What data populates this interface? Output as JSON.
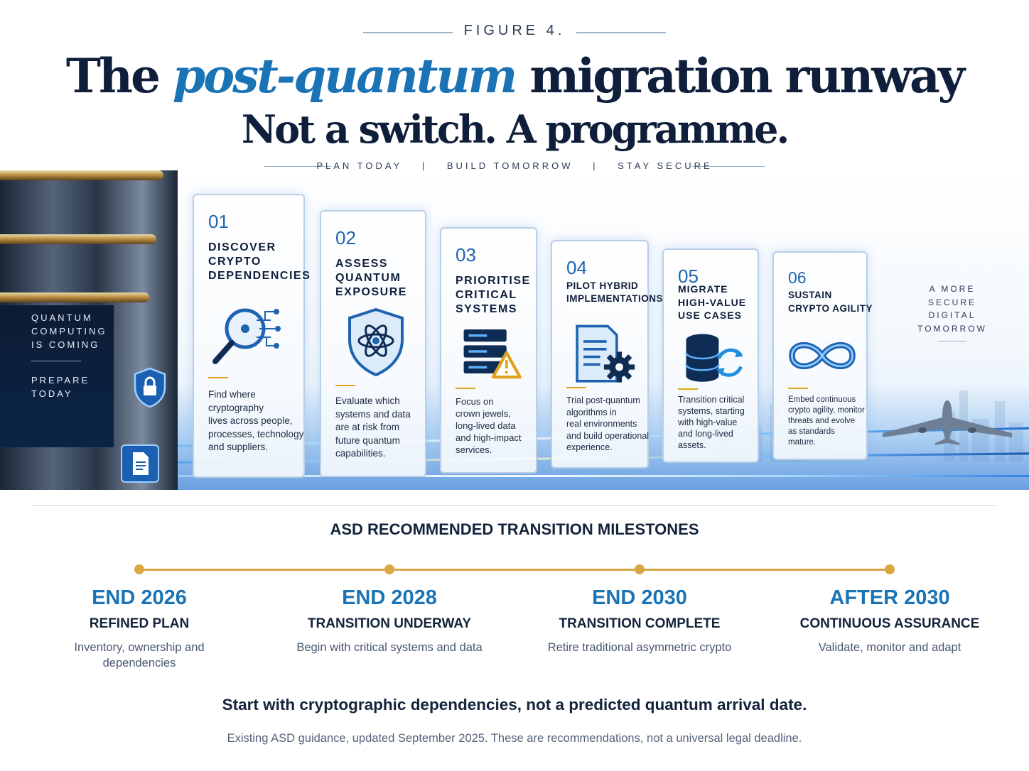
{
  "header": {
    "figure_label": "FIGURE 4.",
    "title_pre": "The",
    "title_accent": "post-quantum",
    "title_post": "migration runway",
    "subtitle": "Not a switch. A programme.",
    "tagline": [
      "PLAN TODAY",
      "|",
      "BUILD TOMORROW",
      "|",
      "STAY SECURE"
    ]
  },
  "tower": {
    "line1": [
      "QUANTUM",
      "COMPUTING",
      "IS COMING"
    ],
    "line2": [
      "PREPARE",
      "TODAY"
    ]
  },
  "steps": [
    {
      "num": "01",
      "title": [
        "Discover",
        "crypto",
        "dependencies"
      ],
      "icon": "magnifier-network-icon",
      "text": [
        "Find where",
        "cryptography",
        "lives across people,",
        "processes, technology",
        "and suppliers."
      ]
    },
    {
      "num": "02",
      "title": [
        "Assess",
        "quantum",
        "exposure"
      ],
      "icon": "atom-shield-icon",
      "text": [
        "Evaluate which",
        "systems and data",
        "are at risk from",
        "future quantum",
        "capabilities."
      ]
    },
    {
      "num": "03",
      "title": [
        "Prioritise",
        "critical",
        "systems"
      ],
      "icon": "server-warning-icon",
      "text": [
        "Focus on",
        "crown jewels,",
        "long-lived data",
        "and high-impact",
        "services."
      ]
    },
    {
      "num": "04",
      "title": [
        "Pilot hybrid",
        "implementations"
      ],
      "icon": "document-gear-icon",
      "text": [
        "Trial post-quantum",
        "algorithms in",
        "real environments",
        "and build operational",
        "experience."
      ]
    },
    {
      "num": "05",
      "title": [
        "Migrate",
        "high-value",
        "use cases"
      ],
      "icon": "database-sync-icon",
      "text": [
        "Transition critical",
        "systems, starting",
        "with high-value",
        "and long-lived",
        "assets."
      ]
    },
    {
      "num": "06",
      "title": [
        "Sustain",
        "crypto agility"
      ],
      "icon": "infinity-icon",
      "text": [
        "Embed continuous",
        "crypto agility, monitor",
        "threats and evolve",
        "as standards",
        "mature."
      ]
    }
  ],
  "aside": [
    "A MORE",
    "SECURE",
    "DIGITAL",
    "TOMORROW"
  ],
  "milestones": {
    "title": "ASD RECOMMENDED TRANSITION MILESTONES",
    "items": [
      {
        "year": "END 2026",
        "head": "REFINED PLAN",
        "desc": [
          "Inventory, ownership and",
          "dependencies"
        ]
      },
      {
        "year": "END 2028",
        "head": "TRANSITION UNDERWAY",
        "desc": [
          "Begin with critical systems and data"
        ]
      },
      {
        "year": "END 2030",
        "head": "TRANSITION COMPLETE",
        "desc": [
          "Retire traditional asymmetric crypto"
        ]
      },
      {
        "year": "AFTER 2030",
        "head": "CONTINUOUS ASSURANCE",
        "desc": [
          "Validate, monitor and adapt"
        ]
      }
    ]
  },
  "callout": "Start with cryptographic dependencies, not a predicted quantum arrival date.",
  "footnote": "Existing ASD guidance, updated September 2025. These are recommendations, not a universal legal deadline.",
  "colors": {
    "navy": "#0f1e3a",
    "accent_blue": "#1a73b5",
    "gold": "#d9a842",
    "dash_gold": "#e0a21c"
  }
}
